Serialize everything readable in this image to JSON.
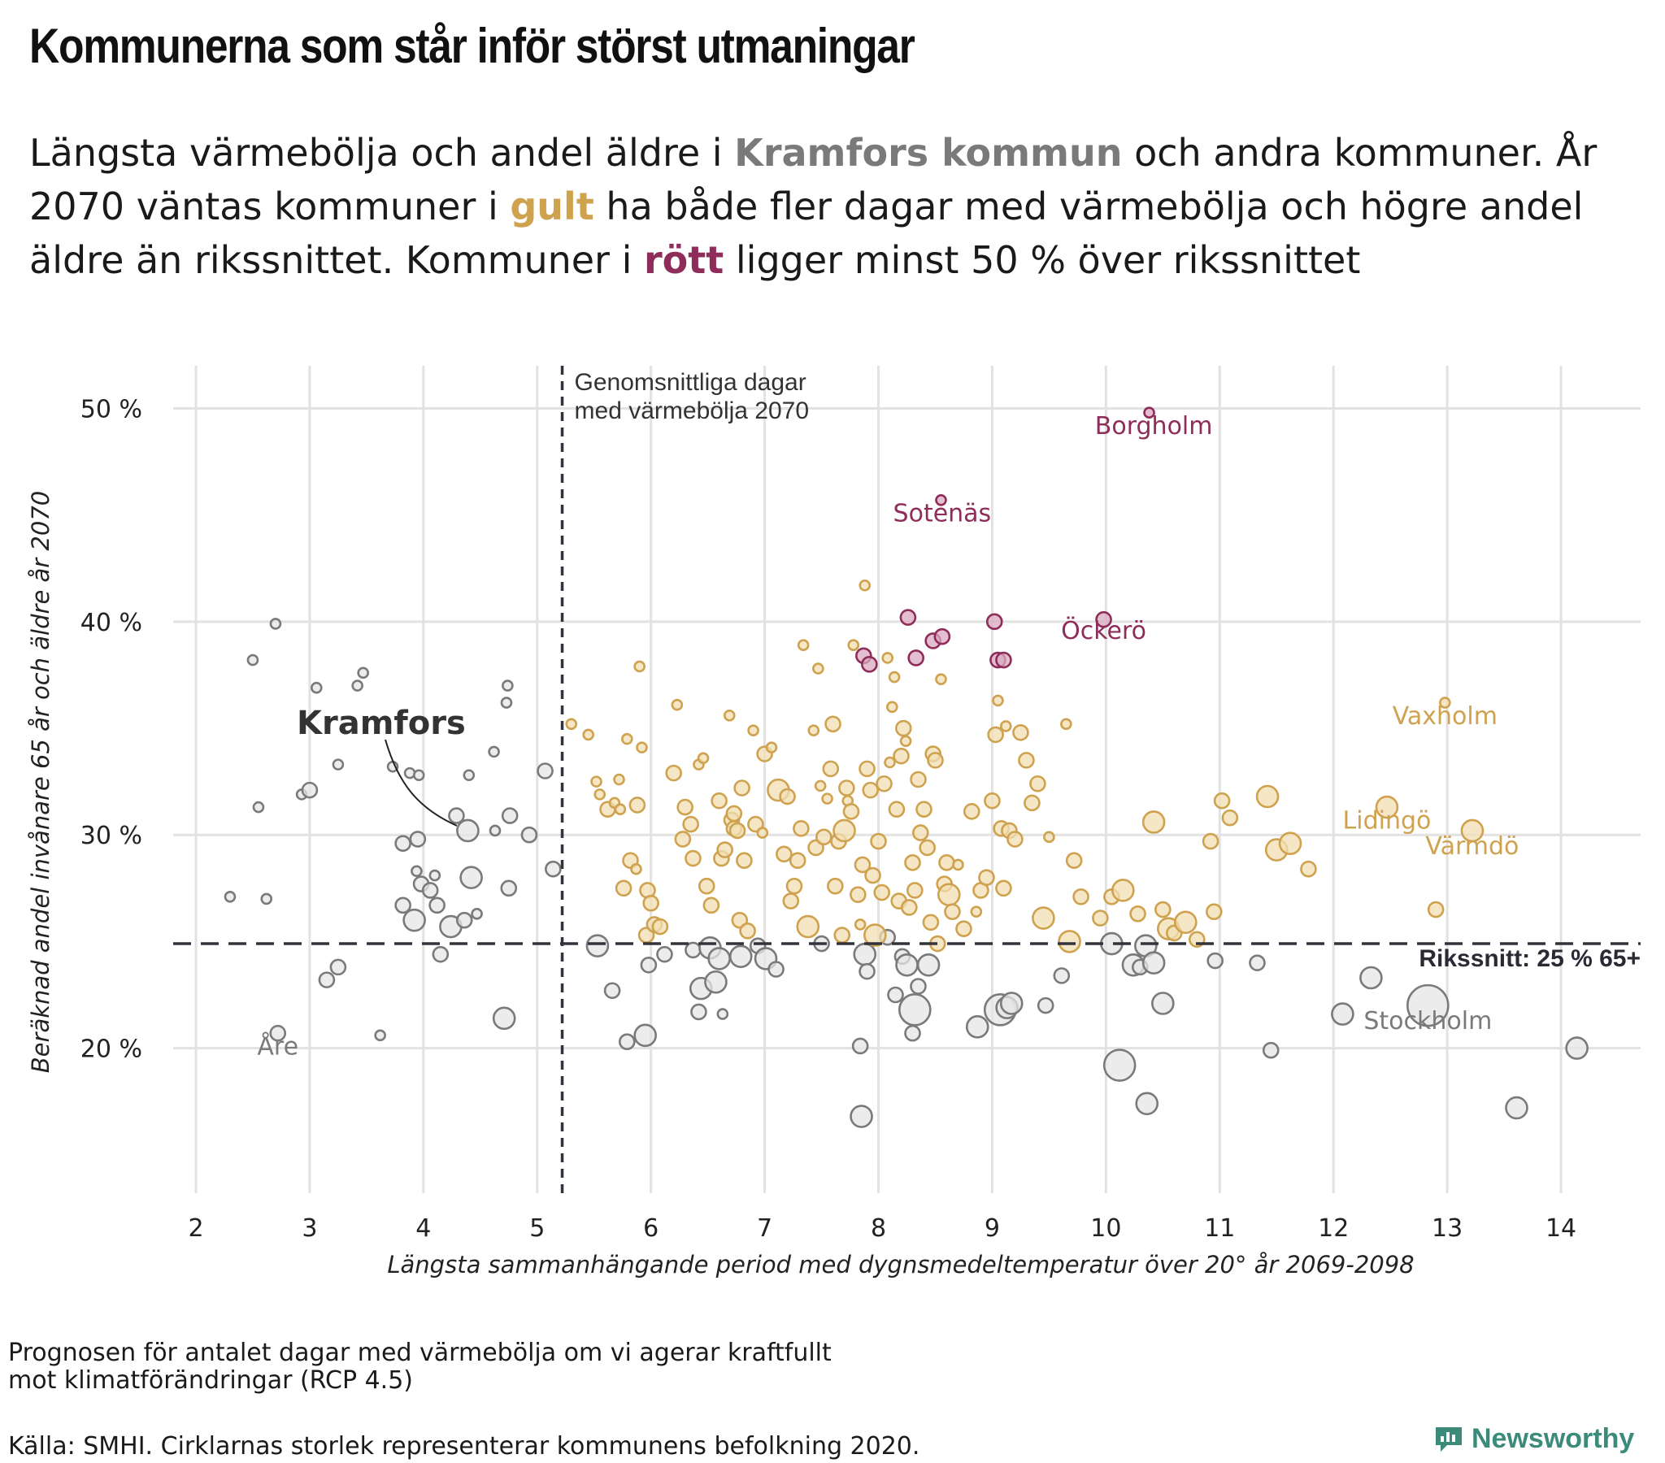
{
  "title": "Kommunerna som står inför störst utmaningar",
  "subtitle": {
    "part1": "Längsta värmebölja och andel äldre i ",
    "highlight_kramfors": "Kramfors kommun",
    "part2": " och andra kommuner. År 2070 väntas kommuner i ",
    "highlight_gult": "gult",
    "part3": " ha både fler dagar med värmebölja och högre andel äldre än rikssnittet. Kommuner i ",
    "highlight_rott": "rött",
    "part4": " ligger minst 50 % över rikssnittet"
  },
  "footnote": {
    "line1": "Prognosen för antalet dagar med värmebölja om vi agerar kraftfullt",
    "line2": "mot klimatförändringar (RCP 4.5)"
  },
  "source": "Källa: SMHI. Cirklarnas storlek representerar kommunens befolkning 2020.",
  "brand": "Newsworthy",
  "colors": {
    "gray": "#7a7a7a",
    "gray_fill": "#e6e6e6",
    "gold": "#cfa24f",
    "gold_fill": "#f2dfb3",
    "red": "#8e2c5a",
    "red_fill": "#d9a9bf",
    "grid": "#e2e2e2",
    "ref_line": "#33333d",
    "brand": "#3b8a7a"
  },
  "chart_data": {
    "type": "scatter",
    "xlabel": "Längsta sammanhängande period med dygnsmedeltemperatur över 20° år 2069-2098",
    "ylabel": "Beräknad andel invånare 65 år och äldre år 2070",
    "xlim": [
      1.8,
      14.7
    ],
    "ylim": [
      13.2,
      52
    ],
    "xticks": [
      2,
      3,
      4,
      5,
      6,
      7,
      8,
      9,
      10,
      11,
      12,
      13,
      14
    ],
    "yticks": [
      20,
      30,
      40,
      50
    ],
    "ytick_labels": [
      "20 %",
      "30 %",
      "40 %",
      "50 %"
    ],
    "grid": true,
    "size_meaning": "population 2020",
    "reference_lines": [
      {
        "orientation": "vertical",
        "value": 5.22,
        "label_line1": "Genomsnittliga dagar",
        "label_line2": "med värmebölja 2070"
      },
      {
        "orientation": "horizontal",
        "value": 24.9,
        "label": "Rikssnitt: 25 % 65+"
      }
    ],
    "groups": {
      "gray": [
        [
          2.3,
          27.1,
          1
        ],
        [
          2.5,
          38.2,
          1
        ],
        [
          2.55,
          31.3,
          1
        ],
        [
          2.62,
          27,
          1
        ],
        [
          2.7,
          39.9,
          1
        ],
        [
          2.72,
          20.7,
          2
        ],
        [
          2.93,
          31.9,
          1
        ],
        [
          3,
          32.1,
          2
        ],
        [
          3.06,
          36.9,
          1
        ],
        [
          3.15,
          23.2,
          2
        ],
        [
          3.25,
          23.8,
          2
        ],
        [
          3.25,
          33.3,
          1
        ],
        [
          3.42,
          37,
          1
        ],
        [
          3.47,
          37.6,
          1
        ],
        [
          3.62,
          20.6,
          1
        ],
        [
          3.73,
          33.2,
          1
        ],
        [
          3.82,
          26.7,
          2
        ],
        [
          3.82,
          29.6,
          2
        ],
        [
          3.88,
          32.9,
          1
        ],
        [
          3.92,
          26,
          3
        ],
        [
          3.94,
          28.3,
          1
        ],
        [
          3.95,
          29.8,
          2
        ],
        [
          3.96,
          32.8,
          1
        ],
        [
          3.98,
          27.7,
          2
        ],
        [
          4.06,
          27.4,
          2
        ],
        [
          4.1,
          28.1,
          1
        ],
        [
          4.12,
          26.7,
          2
        ],
        [
          4.15,
          24.4,
          2
        ],
        [
          4.24,
          25.7,
          3
        ],
        [
          4.29,
          30.9,
          2
        ],
        [
          4.36,
          26,
          2
        ],
        [
          4.39,
          30.2,
          3
        ],
        [
          4.4,
          32.8,
          1
        ],
        [
          4.42,
          28,
          3
        ],
        [
          4.47,
          26.3,
          1
        ],
        [
          4.62,
          33.9,
          1
        ],
        [
          4.63,
          30.2,
          1
        ],
        [
          4.71,
          21.4,
          3
        ],
        [
          4.73,
          36.2,
          1
        ],
        [
          4.74,
          37,
          1
        ],
        [
          4.75,
          27.5,
          2
        ],
        [
          4.76,
          30.9,
          2
        ],
        [
          4.93,
          30,
          2
        ],
        [
          5.07,
          33,
          2
        ],
        [
          5.14,
          28.4,
          2
        ],
        [
          5.53,
          24.8,
          3
        ],
        [
          5.66,
          22.7,
          2
        ],
        [
          5.79,
          20.3,
          2
        ],
        [
          5.95,
          20.6,
          3
        ],
        [
          5.98,
          23.9,
          2
        ],
        [
          6.12,
          24.4,
          2
        ],
        [
          6.37,
          24.6,
          2
        ],
        [
          6.42,
          21.7,
          2
        ],
        [
          6.44,
          22.8,
          3
        ],
        [
          6.52,
          24.7,
          3
        ],
        [
          6.57,
          23.1,
          3
        ],
        [
          6.6,
          24.2,
          3
        ],
        [
          6.63,
          21.6,
          1
        ],
        [
          6.79,
          24.3,
          3
        ],
        [
          6.94,
          24.8,
          2
        ],
        [
          7.01,
          24.2,
          3
        ],
        [
          7.1,
          23.7,
          2
        ],
        [
          7.5,
          24.9,
          2
        ],
        [
          7.84,
          20.1,
          2
        ],
        [
          7.85,
          16.8,
          3
        ],
        [
          7.88,
          24.4,
          3
        ],
        [
          7.9,
          23.6,
          2
        ],
        [
          8.08,
          25.2,
          2
        ],
        [
          8.15,
          22.5,
          2
        ],
        [
          8.21,
          24.3,
          2
        ],
        [
          8.25,
          23.9,
          3
        ],
        [
          8.3,
          20.7,
          2
        ],
        [
          8.32,
          21.8,
          4
        ],
        [
          8.35,
          22.9,
          2
        ],
        [
          8.44,
          23.9,
          3
        ],
        [
          8.87,
          21,
          3
        ],
        [
          9.07,
          21.8,
          4
        ],
        [
          9.13,
          21.9,
          3
        ],
        [
          9.17,
          22.1,
          3
        ],
        [
          9.47,
          22,
          2
        ],
        [
          9.61,
          23.4,
          2
        ],
        [
          10.05,
          24.9,
          3
        ],
        [
          10.12,
          19.2,
          4
        ],
        [
          10.24,
          23.9,
          3
        ],
        [
          10.3,
          23.8,
          2
        ],
        [
          10.35,
          24.8,
          3
        ],
        [
          10.36,
          17.4,
          3
        ],
        [
          10.42,
          24,
          3
        ],
        [
          10.5,
          22.1,
          3
        ],
        [
          10.96,
          24.1,
          2
        ],
        [
          11.33,
          24,
          2
        ],
        [
          11.45,
          19.9,
          2
        ],
        [
          12.08,
          21.6,
          3
        ],
        [
          12.33,
          23.3,
          3
        ],
        [
          12.83,
          22,
          5
        ],
        [
          13.61,
          17.2,
          3
        ],
        [
          14.14,
          20,
          3
        ]
      ],
      "gold": [
        [
          5.3,
          35.2,
          1
        ],
        [
          5.45,
          34.7,
          1
        ],
        [
          5.52,
          32.5,
          1
        ],
        [
          5.55,
          31.9,
          1
        ],
        [
          5.62,
          31.2,
          2
        ],
        [
          5.68,
          31.5,
          1
        ],
        [
          5.72,
          32.6,
          1
        ],
        [
          5.73,
          31.2,
          1
        ],
        [
          5.76,
          27.5,
          2
        ],
        [
          5.79,
          34.5,
          1
        ],
        [
          5.82,
          28.8,
          2
        ],
        [
          5.87,
          28.4,
          1
        ],
        [
          5.88,
          31.4,
          2
        ],
        [
          5.9,
          37.9,
          1
        ],
        [
          5.92,
          34.1,
          1
        ],
        [
          5.96,
          25.3,
          2
        ],
        [
          5.97,
          27.4,
          2
        ],
        [
          6,
          26.8,
          2
        ],
        [
          6.03,
          25.8,
          2
        ],
        [
          6.08,
          25.7,
          2
        ],
        [
          6.2,
          32.9,
          2
        ],
        [
          6.23,
          36.1,
          1
        ],
        [
          6.28,
          29.8,
          2
        ],
        [
          6.3,
          31.3,
          2
        ],
        [
          6.35,
          30.5,
          2
        ],
        [
          6.37,
          28.9,
          2
        ],
        [
          6.42,
          33.3,
          1
        ],
        [
          6.46,
          33.6,
          1
        ],
        [
          6.49,
          27.6,
          2
        ],
        [
          6.53,
          26.7,
          2
        ],
        [
          6.6,
          31.6,
          2
        ],
        [
          6.62,
          28.9,
          2
        ],
        [
          6.65,
          29.3,
          2
        ],
        [
          6.69,
          35.6,
          1
        ],
        [
          6.71,
          30.7,
          2
        ],
        [
          6.73,
          30.3,
          2
        ],
        [
          6.73,
          31,
          2
        ],
        [
          6.76,
          30.2,
          2
        ],
        [
          6.78,
          26,
          2
        ],
        [
          6.8,
          32.2,
          2
        ],
        [
          6.82,
          28.8,
          2
        ],
        [
          6.85,
          25.5,
          2
        ],
        [
          6.9,
          34.9,
          1
        ],
        [
          6.92,
          30.5,
          2
        ],
        [
          6.98,
          30.1,
          1
        ],
        [
          7,
          33.8,
          2
        ],
        [
          7.06,
          34.1,
          1
        ],
        [
          7.12,
          32.1,
          3
        ],
        [
          7.17,
          29.1,
          2
        ],
        [
          7.2,
          31.8,
          2
        ],
        [
          7.23,
          26.9,
          2
        ],
        [
          7.26,
          27.6,
          2
        ],
        [
          7.29,
          28.8,
          2
        ],
        [
          7.32,
          30.3,
          2
        ],
        [
          7.34,
          38.9,
          1
        ],
        [
          7.38,
          25.7,
          3
        ],
        [
          7.43,
          34.9,
          1
        ],
        [
          7.45,
          29.4,
          2
        ],
        [
          7.47,
          37.8,
          1
        ],
        [
          7.49,
          32.3,
          1
        ],
        [
          7.52,
          29.9,
          2
        ],
        [
          7.55,
          31.7,
          1
        ],
        [
          7.58,
          33.1,
          2
        ],
        [
          7.6,
          35.2,
          2
        ],
        [
          7.62,
          27.6,
          2
        ],
        [
          7.65,
          29.7,
          2
        ],
        [
          7.68,
          25.3,
          2
        ],
        [
          7.7,
          30.2,
          3
        ],
        [
          7.72,
          32.2,
          2
        ],
        [
          7.73,
          31.6,
          1
        ],
        [
          7.76,
          31.1,
          2
        ],
        [
          7.78,
          38.9,
          1
        ],
        [
          7.82,
          27.2,
          2
        ],
        [
          7.84,
          25.8,
          1
        ],
        [
          7.86,
          28.6,
          2
        ],
        [
          7.88,
          41.7,
          1
        ],
        [
          7.9,
          33.1,
          2
        ],
        [
          7.93,
          32.1,
          2
        ],
        [
          7.95,
          28.1,
          2
        ],
        [
          7.97,
          25.3,
          3
        ],
        [
          8,
          29.7,
          2
        ],
        [
          8.03,
          27.3,
          2
        ],
        [
          8.05,
          32.4,
          2
        ],
        [
          8.08,
          38.3,
          1
        ],
        [
          8.1,
          33.4,
          1
        ],
        [
          8.12,
          36,
          1
        ],
        [
          8.14,
          37.4,
          1
        ],
        [
          8.16,
          31.2,
          2
        ],
        [
          8.18,
          26.9,
          2
        ],
        [
          8.2,
          33.7,
          2
        ],
        [
          8.22,
          35,
          2
        ],
        [
          8.24,
          34.4,
          1
        ],
        [
          8.27,
          26.6,
          2
        ],
        [
          8.3,
          28.7,
          2
        ],
        [
          8.32,
          27.4,
          2
        ],
        [
          8.35,
          32.6,
          2
        ],
        [
          8.37,
          30.1,
          2
        ],
        [
          8.4,
          31.2,
          2
        ],
        [
          8.43,
          29.4,
          2
        ],
        [
          8.46,
          25.9,
          2
        ],
        [
          8.48,
          33.8,
          2
        ],
        [
          8.5,
          33.5,
          2
        ],
        [
          8.52,
          24.9,
          2
        ],
        [
          8.55,
          37.3,
          1
        ],
        [
          8.58,
          27.7,
          2
        ],
        [
          8.6,
          28.7,
          2
        ],
        [
          8.62,
          27.2,
          3
        ],
        [
          8.65,
          26.4,
          2
        ],
        [
          8.7,
          28.6,
          1
        ],
        [
          8.75,
          25.6,
          2
        ],
        [
          8.82,
          31.1,
          2
        ],
        [
          8.86,
          26.4,
          1
        ],
        [
          8.9,
          27.4,
          2
        ],
        [
          8.95,
          28,
          2
        ],
        [
          9,
          31.6,
          2
        ],
        [
          9.03,
          34.7,
          2
        ],
        [
          9.05,
          36.3,
          1
        ],
        [
          9.08,
          30.3,
          2
        ],
        [
          9.1,
          27.5,
          2
        ],
        [
          9.12,
          35.1,
          1
        ],
        [
          9.15,
          30.2,
          2
        ],
        [
          9.2,
          29.8,
          2
        ],
        [
          9.25,
          34.8,
          2
        ],
        [
          9.3,
          33.5,
          2
        ],
        [
          9.35,
          31.5,
          2
        ],
        [
          9.4,
          32.4,
          2
        ],
        [
          9.45,
          26.1,
          3
        ],
        [
          9.5,
          29.9,
          1
        ],
        [
          9.65,
          35.2,
          1
        ],
        [
          9.68,
          25,
          3
        ],
        [
          9.72,
          28.8,
          2
        ],
        [
          9.78,
          27.1,
          2
        ],
        [
          9.95,
          26.1,
          2
        ],
        [
          10.05,
          27.1,
          2
        ],
        [
          10.15,
          27.4,
          3
        ],
        [
          10.28,
          26.3,
          2
        ],
        [
          10.42,
          30.6,
          3
        ],
        [
          10.5,
          26.5,
          2
        ],
        [
          10.55,
          25.6,
          3
        ],
        [
          10.6,
          25.4,
          2
        ],
        [
          10.7,
          25.9,
          3
        ],
        [
          10.8,
          25.1,
          2
        ],
        [
          10.92,
          29.7,
          2
        ],
        [
          10.95,
          26.4,
          2
        ],
        [
          11.02,
          31.6,
          2
        ],
        [
          11.09,
          30.8,
          2
        ],
        [
          11.42,
          31.8,
          3
        ],
        [
          11.5,
          29.3,
          3
        ],
        [
          11.62,
          29.6,
          3
        ],
        [
          11.78,
          28.4,
          2
        ],
        [
          12.47,
          31.3,
          3
        ],
        [
          12.9,
          26.5,
          2
        ],
        [
          12.98,
          36.2,
          1
        ],
        [
          13.22,
          30.2,
          3
        ]
      ],
      "red": [
        [
          7.87,
          38.4,
          2
        ],
        [
          7.92,
          38,
          2
        ],
        [
          8.26,
          40.2,
          2
        ],
        [
          8.33,
          38.3,
          2
        ],
        [
          8.48,
          39.1,
          2
        ],
        [
          8.55,
          45.7,
          1
        ],
        [
          8.56,
          39.3,
          2
        ],
        [
          9.02,
          40,
          2
        ],
        [
          9.05,
          38.2,
          2
        ],
        [
          9.1,
          38.2,
          2
        ],
        [
          9.98,
          40.1,
          2
        ],
        [
          10.38,
          49.8,
          1
        ]
      ]
    },
    "highlight": {
      "name": "Kramfors",
      "x": 4.38,
      "y": 30.2
    },
    "annotations": [
      {
        "text": "Borgholm",
        "group": "red",
        "x": 10.42,
        "y": 49.1
      },
      {
        "text": "Sotenäs",
        "group": "red",
        "x": 8.56,
        "y": 45
      },
      {
        "text": "Öckerö",
        "group": "red",
        "x": 9.98,
        "y": 39.5
      },
      {
        "text": "Vaxholm",
        "group": "gold",
        "x": 12.98,
        "y": 35.5
      },
      {
        "text": "Lidingö",
        "group": "gold",
        "x": 12.47,
        "y": 30.6
      },
      {
        "text": "Värmdö",
        "group": "gold",
        "x": 13.22,
        "y": 29.4
      },
      {
        "text": "Stockholm",
        "group": "gray",
        "x": 12.83,
        "y": 21.2
      },
      {
        "text": "Åre",
        "group": "gray",
        "x": 2.72,
        "y": 20
      }
    ]
  }
}
